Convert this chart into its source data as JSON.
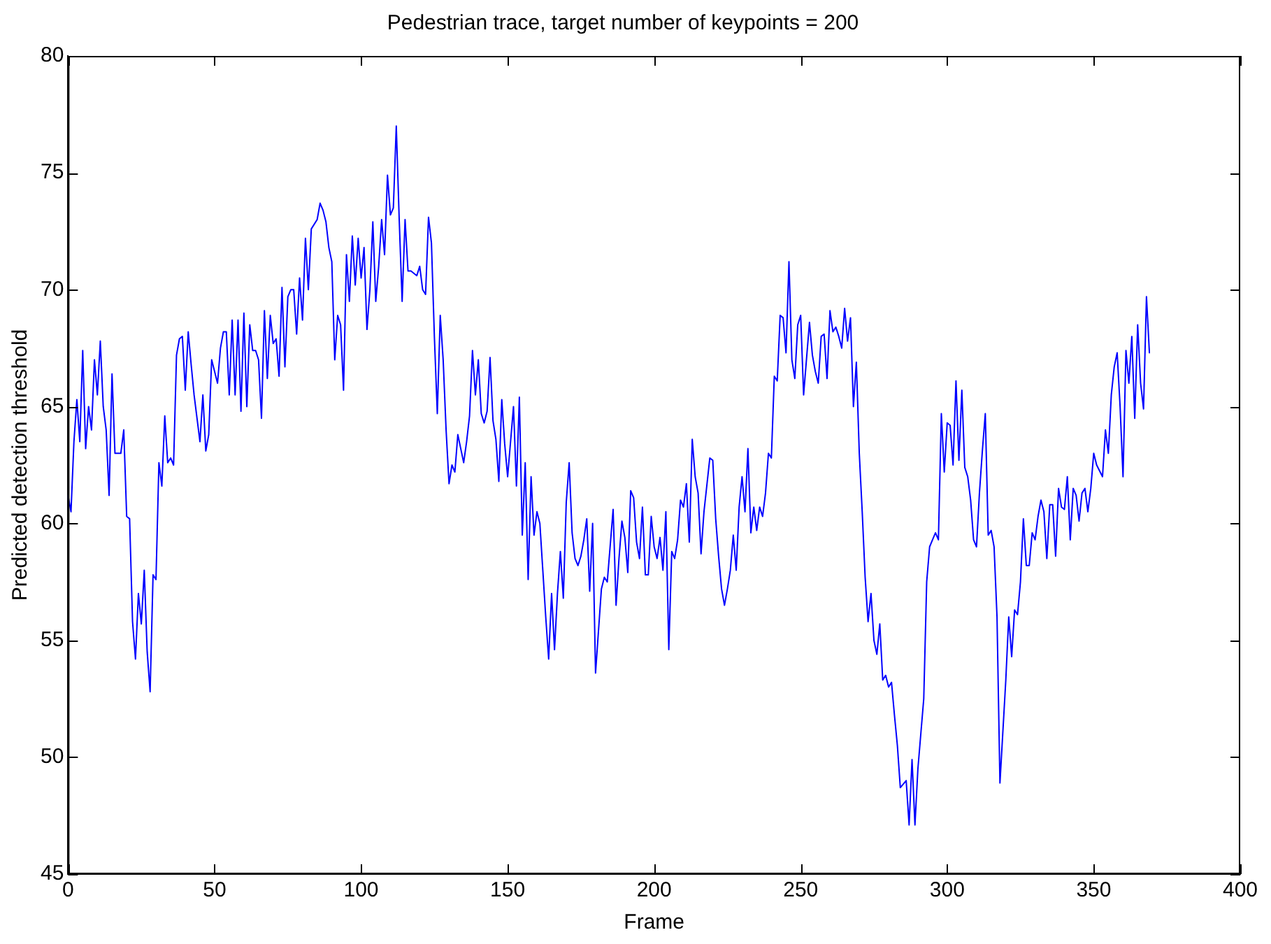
{
  "chart_data": {
    "type": "line",
    "title": "Pedestrian trace, target number of keypoints = 200",
    "xlabel": "Frame",
    "ylabel": "Predicted detection threshold",
    "xlim": [
      0,
      400
    ],
    "xticks": [
      0,
      50,
      100,
      150,
      200,
      250,
      300,
      350,
      400
    ],
    "ylim": [
      45,
      80
    ],
    "yticks": [
      45,
      50,
      55,
      60,
      65,
      70,
      75,
      80
    ],
    "grid": false,
    "legend": false,
    "marker": "none",
    "line_style": "solid",
    "x": [
      0,
      1,
      2,
      3,
      4,
      5,
      6,
      7,
      8,
      9,
      10,
      11,
      12,
      13,
      14,
      15,
      16,
      18,
      19,
      20,
      21,
      22,
      23,
      24,
      25,
      26,
      27,
      28,
      29,
      30,
      31,
      32,
      33,
      34,
      35,
      36,
      37,
      38,
      39,
      40,
      41,
      42,
      43,
      44,
      45,
      46,
      47,
      48,
      49,
      51,
      52,
      53,
      54,
      55,
      56,
      57,
      58,
      59,
      60,
      61,
      62,
      63,
      64,
      65,
      66,
      67,
      68,
      69,
      70,
      71,
      72,
      73,
      74,
      75,
      76,
      77,
      78,
      79,
      80,
      81,
      82,
      83,
      85,
      86,
      87,
      88,
      89,
      90,
      91,
      92,
      93,
      94,
      95,
      96,
      97,
      98,
      99,
      100,
      101,
      102,
      103,
      104,
      105,
      106,
      107,
      108,
      109,
      110,
      111,
      112,
      113,
      114,
      115,
      116,
      117,
      119,
      120,
      121,
      122,
      123,
      124,
      125,
      126,
      127,
      128,
      129,
      130,
      131,
      132,
      133,
      134,
      135,
      136,
      137,
      138,
      139,
      140,
      141,
      142,
      143,
      144,
      145,
      146,
      147,
      148,
      149,
      150,
      152,
      153,
      154,
      155,
      156,
      157,
      158,
      159,
      160,
      161,
      162,
      163,
      164,
      165,
      166,
      167,
      168,
      169,
      170,
      171,
      172,
      173,
      174,
      175,
      176,
      177,
      178,
      179,
      180,
      181,
      182,
      183,
      184,
      186,
      187,
      188,
      189,
      190,
      191,
      192,
      193,
      194,
      195,
      196,
      197,
      198,
      199,
      200,
      201,
      202,
      203,
      204,
      205,
      206,
      207,
      208,
      209,
      210,
      211,
      212,
      213,
      214,
      215,
      216,
      217,
      219,
      220,
      221,
      222,
      223,
      224,
      225,
      226,
      227,
      228,
      229,
      230,
      231,
      232,
      233,
      234,
      235,
      236,
      237,
      238,
      239,
      240,
      241,
      242,
      243,
      244,
      245,
      246,
      247,
      248,
      249,
      250,
      251,
      253,
      254,
      255,
      256,
      257,
      258,
      259,
      260,
      261,
      262,
      263,
      264,
      265,
      266,
      267,
      268,
      269,
      270,
      271,
      272,
      273,
      274,
      275,
      276,
      277,
      278,
      279,
      280,
      281,
      282,
      283,
      284,
      286,
      287,
      288,
      289,
      290,
      291,
      292,
      293,
      294,
      295,
      296,
      297,
      298,
      299,
      300,
      301,
      302,
      303,
      304,
      305,
      306,
      307,
      308,
      309,
      310,
      311,
      312,
      313,
      314,
      315,
      316,
      317,
      318,
      320,
      321,
      322,
      323,
      324,
      325,
      326,
      327,
      328,
      329,
      330,
      331,
      332,
      333,
      334,
      335,
      336,
      337,
      338,
      339,
      340,
      341,
      342,
      343,
      344,
      345,
      346,
      347,
      348,
      349,
      350,
      351,
      353,
      354,
      355,
      356,
      357,
      358,
      359,
      360,
      361,
      362,
      363,
      364,
      365,
      366,
      367,
      368,
      369
    ],
    "series": [
      {
        "color": "#0000ff",
        "values": [
          61.2,
          60.5,
          63.5,
          65.3,
          63.5,
          67.4,
          63.2,
          65,
          64,
          67,
          65.5,
          67.8,
          65,
          64,
          61.2,
          66.4,
          63,
          63,
          64,
          60.3,
          60.2,
          55.8,
          54.2,
          57,
          55.7,
          58,
          54.5,
          52.8,
          57.8,
          57.6,
          62.6,
          61.6,
          64.6,
          62.6,
          62.8,
          62.5,
          67.2,
          67.9,
          68,
          65.7,
          68.2,
          66.8,
          65.5,
          64.5,
          63.5,
          65.5,
          63.1,
          63.8,
          67,
          66,
          67.5,
          68.2,
          68.2,
          65.5,
          68.7,
          65.5,
          68.7,
          64.8,
          69,
          65,
          68.5,
          67.4,
          67.4,
          67,
          64.5,
          69.1,
          66.2,
          68.9,
          67.7,
          67.9,
          66.3,
          70.1,
          66.7,
          69.7,
          70,
          70,
          68.1,
          70.5,
          68.7,
          72.2,
          70,
          72.6,
          73,
          73.7,
          73.4,
          72.9,
          71.8,
          71.2,
          67,
          68.9,
          68.5,
          65.7,
          71.5,
          69.5,
          72.3,
          70.2,
          72.2,
          70.5,
          71.8,
          68.3,
          70,
          72.9,
          69.5,
          71,
          73,
          71.5,
          74.9,
          73.2,
          73.5,
          77,
          73,
          69.5,
          73,
          70.8,
          70.8,
          70.6,
          71,
          70,
          69.8,
          73.1,
          72,
          68,
          64.7,
          68.9,
          67,
          64,
          61.7,
          62.5,
          62.2,
          63.8,
          63.2,
          62.6,
          63.5,
          64.6,
          67.4,
          65.5,
          67,
          64.7,
          64.3,
          64.8,
          67.1,
          64.4,
          63.6,
          61.8,
          65.3,
          63.4,
          62,
          65,
          61.6,
          65.4,
          59.5,
          62.6,
          57.6,
          62,
          59.5,
          60.5,
          60,
          58,
          56,
          54.2,
          57,
          54.6,
          57,
          58.8,
          56.8,
          60.9,
          62.6,
          59.6,
          58.5,
          58.2,
          58.6,
          59.3,
          60.2,
          57.1,
          60,
          53.6,
          55.4,
          57.2,
          57.7,
          57.5,
          60.6,
          56.5,
          58.5,
          60.1,
          59.4,
          57.9,
          61.4,
          61.1,
          59.2,
          58.5,
          60.7,
          57.8,
          57.8,
          60.3,
          59,
          58.5,
          59.4,
          58,
          60.5,
          54.6,
          58.8,
          58.5,
          59.3,
          61,
          60.7,
          61.7,
          59.2,
          63.6,
          62,
          61.3,
          58.7,
          60.5,
          62.8,
          62.7,
          60.2,
          58.6,
          57.2,
          56.5,
          57.2,
          58,
          59.5,
          58,
          60.7,
          62,
          60.5,
          63.2,
          59.6,
          60.7,
          59.7,
          60.7,
          60.3,
          61.3,
          63,
          62.8,
          66.3,
          66.1,
          68.9,
          68.8,
          67.3,
          71.2,
          67,
          66.2,
          68.5,
          68.9,
          65.5,
          68.6,
          67.2,
          66.5,
          66,
          68,
          68.1,
          66.2,
          69.1,
          68.2,
          68.4,
          68,
          67.5,
          69.2,
          67.8,
          68.8,
          65,
          66.9,
          63,
          60.5,
          57.7,
          55.8,
          57,
          55,
          54.4,
          55.7,
          53.3,
          53.5,
          53,
          53.2,
          51.8,
          50.5,
          48.7,
          49,
          47.1,
          49.9,
          47.1,
          49.5,
          51,
          52.5,
          57.5,
          59,
          59.3,
          59.6,
          59.3,
          64.7,
          62.2,
          64.3,
          64.2,
          62.5,
          66.1,
          62.7,
          65.7,
          62.4,
          62,
          61,
          59.3,
          59,
          61.3,
          63.1,
          64.7,
          59.5,
          59.7,
          59,
          56,
          48.9,
          53.3,
          56,
          54.3,
          56.3,
          56.1,
          57.5,
          60.2,
          58.2,
          58.2,
          59.6,
          59.3,
          60.3,
          61,
          60.5,
          58.5,
          60.8,
          60.8,
          58.6,
          61.5,
          60.7,
          60.6,
          62,
          59.3,
          61.5,
          61.2,
          60.1,
          61.3,
          61.5,
          60.5,
          61.5,
          63,
          62.5,
          62,
          64,
          63,
          65.5,
          66.7,
          67.3,
          65,
          62,
          67.4,
          66,
          68,
          64.5,
          68.5,
          66,
          64.9,
          69.7,
          67.3
        ]
      }
    ]
  }
}
